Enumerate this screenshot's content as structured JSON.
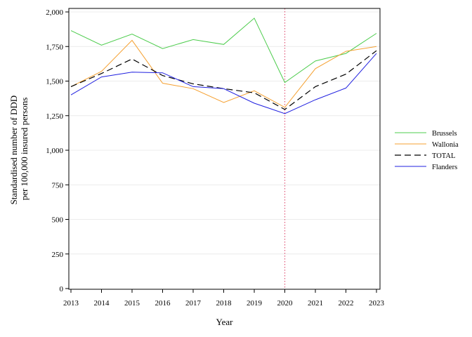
{
  "chart_data": {
    "type": "line",
    "title": "",
    "xlabel": "Year",
    "ylabel": [
      "Standardised number of DDD",
      "per 100,000 insured persons"
    ],
    "x": [
      2013,
      2014,
      2015,
      2016,
      2017,
      2018,
      2019,
      2020,
      2021,
      2022,
      2023
    ],
    "x_tick_labels": [
      "2013",
      "2014",
      "2015",
      "2016",
      "2017",
      "2018",
      "2019",
      "2020",
      "2021",
      "2022",
      "2023"
    ],
    "ylim": [
      0,
      2000
    ],
    "y_ticks": [
      0,
      250,
      500,
      750,
      1000,
      1250,
      1500,
      1750,
      2000
    ],
    "y_tick_labels": [
      "0",
      "250",
      "500",
      "750",
      "1,000",
      "1,250",
      "1,500",
      "1,750",
      "2,000"
    ],
    "grid": "horizontal",
    "reference_line": {
      "x": 2020,
      "color": "#e05a7a",
      "style": "dotted"
    },
    "legend_position": "right",
    "series": [
      {
        "name": "Brussels",
        "color": "#4ccc4c",
        "dash": "solid",
        "values": [
          1865,
          1760,
          1840,
          1735,
          1800,
          1765,
          1955,
          1490,
          1645,
          1700,
          1845
        ]
      },
      {
        "name": "Wallonia",
        "color": "#f5a030",
        "dash": "solid",
        "values": [
          1460,
          1570,
          1795,
          1485,
          1445,
          1345,
          1430,
          1310,
          1590,
          1715,
          1750
        ]
      },
      {
        "name": "TOTAL",
        "color": "#000000",
        "dash": "dashed",
        "values": [
          1460,
          1555,
          1660,
          1540,
          1480,
          1445,
          1415,
          1295,
          1460,
          1550,
          1720
        ]
      },
      {
        "name": "Flanders",
        "color": "#2020e0",
        "dash": "solid",
        "values": [
          1400,
          1530,
          1565,
          1560,
          1460,
          1445,
          1340,
          1265,
          1365,
          1450,
          1700
        ]
      }
    ]
  }
}
